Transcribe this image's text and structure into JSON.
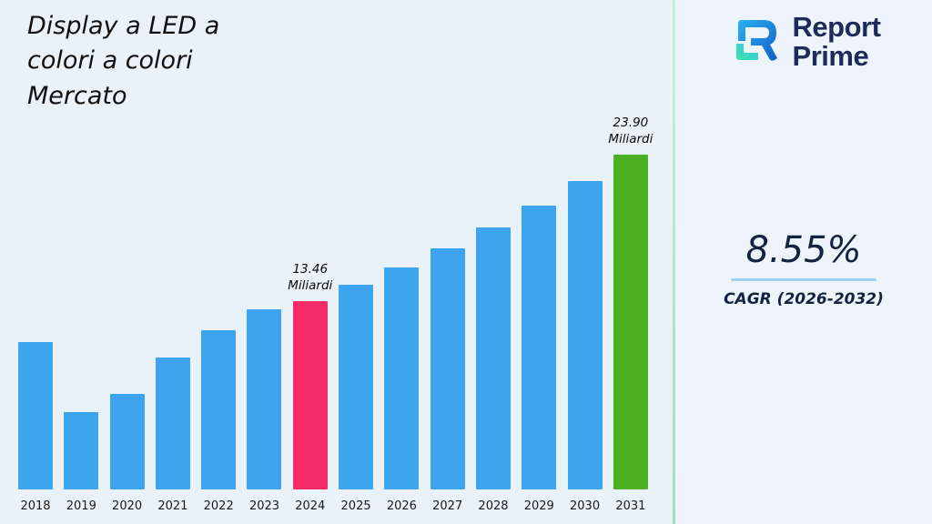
{
  "title": {
    "lines": [
      "Display a LED a",
      "colori a colori",
      "Mercato"
    ]
  },
  "logo": {
    "line1": "Report",
    "line2": "Prime"
  },
  "cagr": {
    "value": "8.55%",
    "label": "CAGR (2026-2032)"
  },
  "chart_data": {
    "type": "bar",
    "title": "Display a LED a colori a colori Mercato",
    "xlabel": "",
    "ylabel": "",
    "unit": "Miliardi",
    "ylim": [
      0,
      26
    ],
    "grid": false,
    "legend": "none",
    "categories": [
      "2018",
      "2019",
      "2020",
      "2021",
      "2022",
      "2023",
      "2024",
      "2025",
      "2026",
      "2027",
      "2028",
      "2029",
      "2030",
      "2031"
    ],
    "values": [
      10.5,
      5.5,
      6.8,
      9.4,
      11.4,
      12.9,
      13.46,
      14.61,
      15.86,
      17.22,
      18.69,
      20.29,
      22.02,
      23.9
    ],
    "colors": [
      "#3da5f0",
      "#3da5f0",
      "#3da5f0",
      "#3da5f0",
      "#3da5f0",
      "#3da5f0",
      "#f52c67",
      "#3da5f0",
      "#3da5f0",
      "#3da5f0",
      "#3da5f0",
      "#3da5f0",
      "#3da5f0",
      "#4cb122"
    ],
    "bar_color_default": "#3da5f0",
    "bar_color_highlight_2024": "#f52c67",
    "bar_color_highlight_2031": "#4cb122",
    "annotations": [
      {
        "category": "2024",
        "lines": [
          "13.46",
          "Miliardi"
        ]
      },
      {
        "category": "2031",
        "lines": [
          "23.90",
          "Miliardi"
        ]
      }
    ]
  },
  "colors": {
    "background": "#e9f1f9",
    "divider_green": "#a2e4b0",
    "logo_navy": "#1e2a5a",
    "cagr_underline": "#9fd2ee"
  }
}
